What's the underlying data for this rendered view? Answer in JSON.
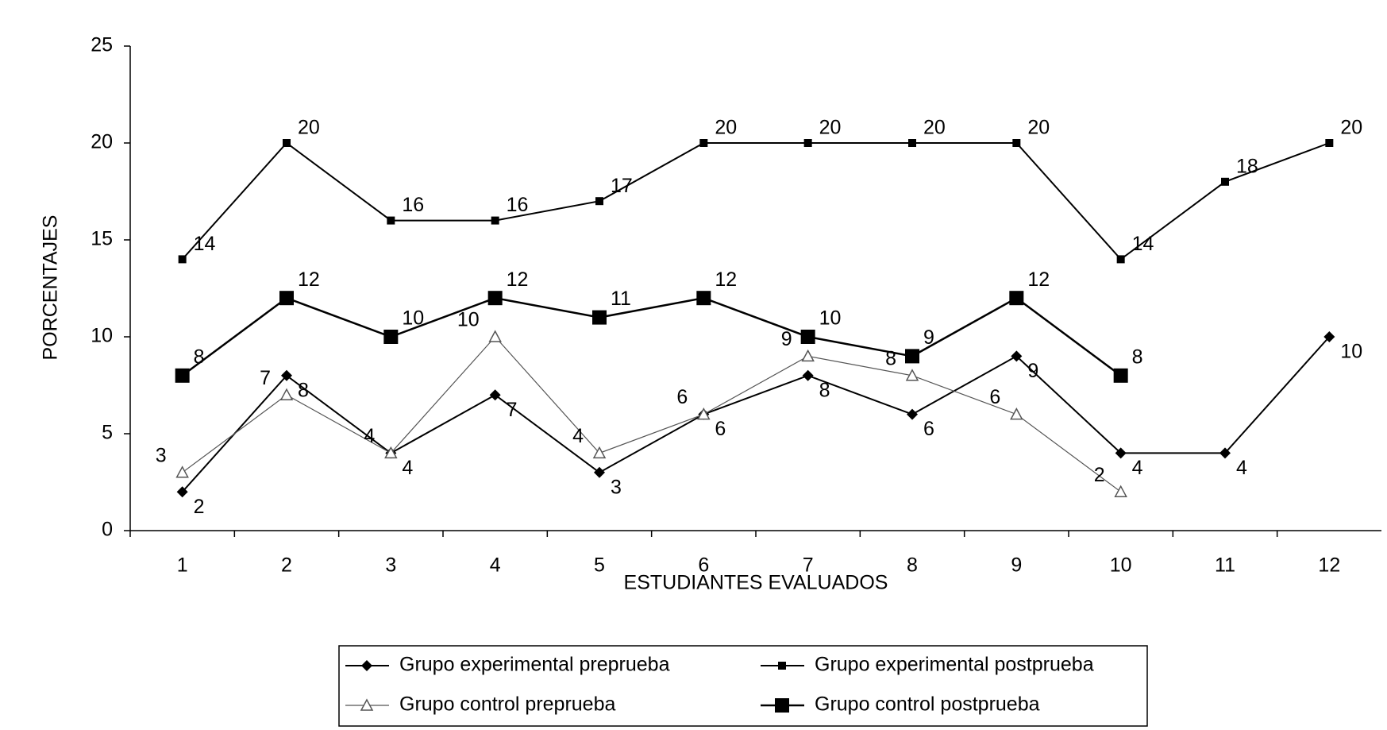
{
  "chart_data": {
    "type": "line",
    "categories": [
      "1",
      "2",
      "3",
      "4",
      "5",
      "6",
      "7",
      "8",
      "9",
      "10",
      "11",
      "12"
    ],
    "xlabel": "ESTUDIANTES EVALUADOS",
    "ylabel": "PORCENTAJES",
    "ylim": [
      0,
      25
    ],
    "yticks": [
      0,
      5,
      10,
      15,
      20,
      25
    ],
    "legend": "bottom",
    "series": [
      {
        "name": "Grupo experimental preprueba",
        "color": "#000000",
        "marker": "diamond",
        "values": [
          2,
          8,
          4,
          7,
          3,
          6,
          8,
          6,
          9,
          4,
          4,
          10
        ]
      },
      {
        "name": "Grupo experimental postprueba",
        "color": "#000000",
        "marker": "square",
        "values": [
          14,
          20,
          16,
          16,
          17,
          20,
          20,
          20,
          20,
          14,
          18,
          20
        ]
      },
      {
        "name": "Grupo control preprueba",
        "color": "#555555",
        "marker": "triangle",
        "values": [
          3,
          7,
          4,
          10,
          4,
          6,
          9,
          8,
          6,
          2,
          null,
          null
        ]
      },
      {
        "name": "Grupo control postprueba",
        "color": "#000000",
        "marker": "big-square",
        "values": [
          8,
          12,
          10,
          12,
          11,
          12,
          10,
          9,
          12,
          8,
          null,
          null
        ]
      }
    ]
  }
}
